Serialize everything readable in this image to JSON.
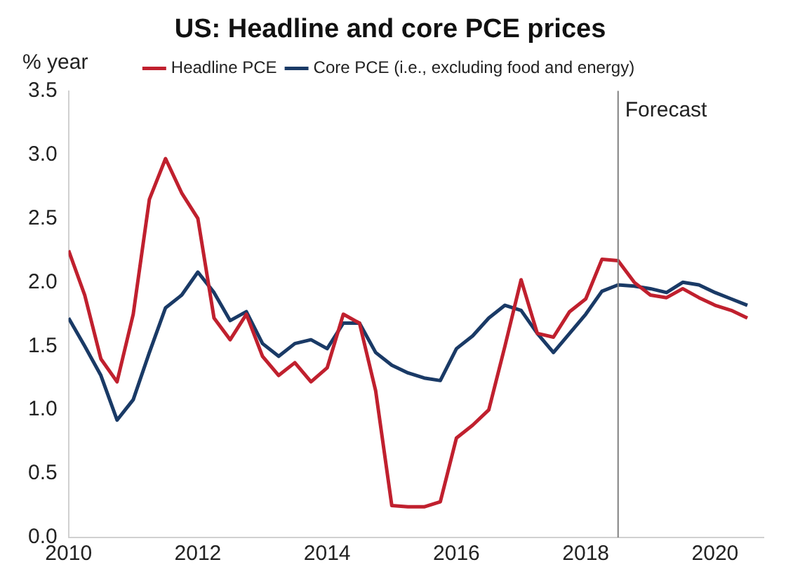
{
  "chart_data": {
    "type": "line",
    "title": "US: Headline and core PCE prices",
    "ylabel": "% year",
    "xlim": [
      2010,
      2020.75
    ],
    "xticks": [
      2010,
      2012,
      2014,
      2016,
      2018,
      2020
    ],
    "ylim": [
      0,
      3.5
    ],
    "yticks": [
      {
        "value": 0,
        "label": "0.0"
      },
      {
        "value": 0.5,
        "label": "0.5"
      },
      {
        "value": 1,
        "label": "1.0"
      },
      {
        "value": 1.5,
        "label": "1.5"
      },
      {
        "value": 2,
        "label": "2.0"
      },
      {
        "value": 2.5,
        "label": "2.5"
      },
      {
        "value": 3,
        "label": "3.0"
      },
      {
        "value": 3.5,
        "label": "3.5"
      }
    ],
    "x": [
      2010,
      2010.25,
      2010.5,
      2010.75,
      2011,
      2011.25,
      2011.5,
      2011.75,
      2012,
      2012.25,
      2012.5,
      2012.75,
      2013,
      2013.25,
      2013.5,
      2013.75,
      2014,
      2014.25,
      2014.5,
      2014.75,
      2015,
      2015.25,
      2015.5,
      2015.75,
      2016,
      2016.25,
      2016.5,
      2016.75,
      2017,
      2017.25,
      2017.5,
      2017.75,
      2018,
      2018.25,
      2018.5,
      2018.75,
      2019,
      2019.25,
      2019.5,
      2019.75,
      2020,
      2020.25,
      2020.5
    ],
    "series": [
      {
        "name": "Headline PCE",
        "color": "#c0202e",
        "values": [
          2.25,
          1.9,
          1.4,
          1.22,
          1.75,
          2.65,
          2.97,
          2.7,
          2.5,
          1.72,
          1.55,
          1.75,
          1.42,
          1.27,
          1.37,
          1.22,
          1.33,
          1.75,
          1.68,
          1.15,
          0.25,
          0.24,
          0.24,
          0.28,
          0.78,
          0.88,
          1.0,
          1.5,
          2.02,
          1.6,
          1.57,
          1.77,
          1.87,
          2.18,
          2.17,
          2.0,
          1.9,
          1.88,
          1.95,
          1.88,
          1.82,
          1.78,
          1.72
        ]
      },
      {
        "name": "Core PCE (i.e., excluding food and energy)",
        "color": "#1a3a66",
        "values": [
          1.72,
          1.5,
          1.27,
          0.92,
          1.08,
          1.45,
          1.8,
          1.9,
          2.08,
          1.92,
          1.7,
          1.77,
          1.52,
          1.42,
          1.52,
          1.55,
          1.48,
          1.68,
          1.68,
          1.45,
          1.35,
          1.29,
          1.25,
          1.23,
          1.48,
          1.58,
          1.72,
          1.82,
          1.78,
          1.6,
          1.45,
          1.6,
          1.75,
          1.93,
          1.98,
          1.97,
          1.95,
          1.92,
          2.0,
          1.98,
          1.92,
          1.87,
          1.82
        ]
      }
    ],
    "ref_lines": [
      {
        "axis": "x",
        "value": 2018.5,
        "label": "Forecast",
        "color": "#808080"
      }
    ],
    "legend": "top",
    "grid": false,
    "marker": "none",
    "line_style": "solid"
  }
}
